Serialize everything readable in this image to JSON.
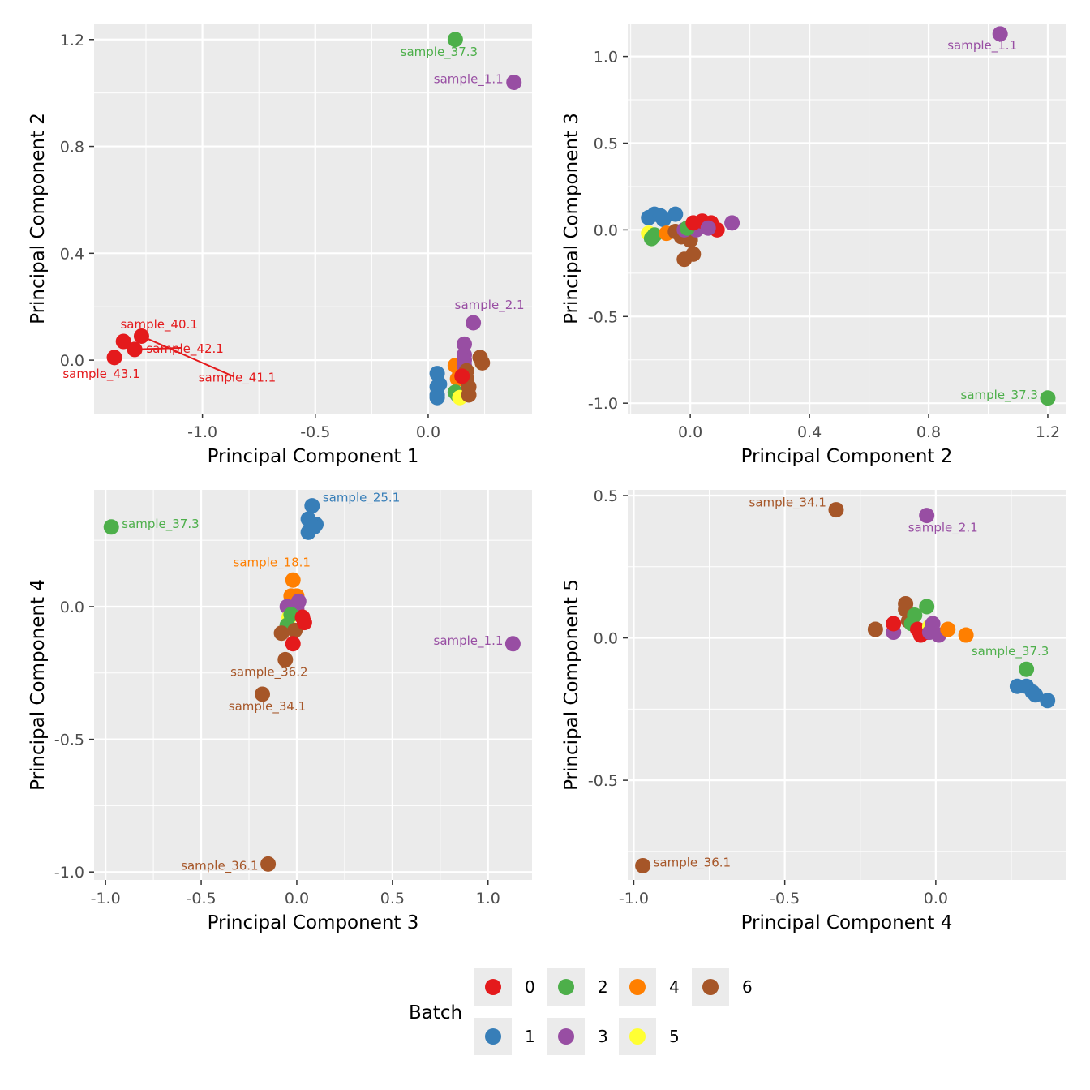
{
  "legend": {
    "title": "Batch",
    "items": [
      {
        "label": "0",
        "color": "#E41A1C"
      },
      {
        "label": "1",
        "color": "#377EB8"
      },
      {
        "label": "2",
        "color": "#4DAF4A"
      },
      {
        "label": "3",
        "color": "#984EA3"
      },
      {
        "label": "4",
        "color": "#FF7F00"
      },
      {
        "label": "5",
        "color": "#FFFF33"
      },
      {
        "label": "6",
        "color": "#A65628"
      }
    ]
  },
  "chart_data": [
    {
      "type": "scatter",
      "xlabel": "Principal Component 1",
      "ylabel": "Principal Component 2",
      "xlim": [
        -1.48,
        0.46
      ],
      "ylim": [
        -0.2,
        1.26
      ],
      "x_ticks": [
        -1.0,
        -0.5,
        0.0
      ],
      "x_tick_labels": [
        "-1.0",
        "-0.5",
        "0.0"
      ],
      "y_ticks": [
        0.0,
        0.4,
        0.8,
        1.2
      ],
      "y_tick_labels": [
        "0.0",
        "0.4",
        "0.8",
        "1.2"
      ],
      "points": [
        {
          "x": -1.39,
          "y": 0.01,
          "batch": "0",
          "label": "sample_43.1"
        },
        {
          "x": -1.35,
          "y": 0.07,
          "batch": "0",
          "label": "sample_40.1"
        },
        {
          "x": -1.3,
          "y": 0.04,
          "batch": "0",
          "label": "sample_42.1"
        },
        {
          "x": -1.27,
          "y": 0.09,
          "batch": "0",
          "label": "sample_41.1"
        },
        {
          "x": 0.12,
          "y": 1.2,
          "batch": "2",
          "label": "sample_37.3"
        },
        {
          "x": 0.38,
          "y": 1.04,
          "batch": "3",
          "label": "sample_1.1"
        },
        {
          "x": 0.2,
          "y": 0.14,
          "batch": "3",
          "label": "sample_2.1"
        },
        {
          "x": 0.04,
          "y": -0.05,
          "batch": "1"
        },
        {
          "x": 0.04,
          "y": -0.1,
          "batch": "1"
        },
        {
          "x": 0.04,
          "y": -0.13,
          "batch": "1"
        },
        {
          "x": 0.04,
          "y": -0.14,
          "batch": "1"
        },
        {
          "x": 0.05,
          "y": -0.09,
          "batch": "1"
        },
        {
          "x": 0.12,
          "y": -0.02,
          "batch": "4"
        },
        {
          "x": 0.13,
          "y": -0.07,
          "batch": "4"
        },
        {
          "x": 0.14,
          "y": -0.05,
          "batch": "4"
        },
        {
          "x": 0.13,
          "y": -0.13,
          "batch": "2"
        },
        {
          "x": 0.12,
          "y": -0.12,
          "batch": "2"
        },
        {
          "x": 0.14,
          "y": -0.14,
          "batch": "5"
        },
        {
          "x": 0.16,
          "y": 0.06,
          "batch": "3"
        },
        {
          "x": 0.16,
          "y": 0.02,
          "batch": "3"
        },
        {
          "x": 0.16,
          "y": 0.0,
          "batch": "3"
        },
        {
          "x": 0.16,
          "y": -0.02,
          "batch": "3"
        },
        {
          "x": 0.17,
          "y": -0.04,
          "batch": "6"
        },
        {
          "x": 0.17,
          "y": -0.07,
          "batch": "6"
        },
        {
          "x": 0.18,
          "y": -0.1,
          "batch": "6"
        },
        {
          "x": 0.18,
          "y": -0.13,
          "batch": "6"
        },
        {
          "x": 0.23,
          "y": 0.01,
          "batch": "6"
        },
        {
          "x": 0.24,
          "y": -0.01,
          "batch": "6"
        },
        {
          "x": 0.15,
          "y": -0.06,
          "batch": "0"
        }
      ]
    },
    {
      "type": "scatter",
      "xlabel": "Principal Component 2",
      "ylabel": "Principal Component 3",
      "xlim": [
        -0.21,
        1.26
      ],
      "ylim": [
        -1.06,
        1.19
      ],
      "x_ticks": [
        0.0,
        0.4,
        0.8,
        1.2
      ],
      "x_tick_labels": [
        "0.0",
        "0.4",
        "0.8",
        "1.2"
      ],
      "y_ticks": [
        -1.0,
        -0.5,
        0.0,
        0.5,
        1.0
      ],
      "y_tick_labels": [
        "-1.0",
        "-0.5",
        "0.0",
        "0.5",
        "1.0"
      ],
      "points": [
        {
          "x": 1.04,
          "y": 1.13,
          "batch": "3",
          "label": "sample_1.1"
        },
        {
          "x": 1.2,
          "y": -0.97,
          "batch": "2",
          "label": "sample_37.3"
        },
        {
          "x": -0.14,
          "y": 0.07,
          "batch": "1"
        },
        {
          "x": -0.12,
          "y": 0.09,
          "batch": "1"
        },
        {
          "x": -0.1,
          "y": 0.08,
          "batch": "1"
        },
        {
          "x": -0.05,
          "y": 0.09,
          "batch": "1"
        },
        {
          "x": -0.09,
          "y": 0.06,
          "batch": "1"
        },
        {
          "x": -0.14,
          "y": -0.02,
          "batch": "5"
        },
        {
          "x": -0.13,
          "y": -0.05,
          "batch": "2"
        },
        {
          "x": -0.12,
          "y": -0.03,
          "batch": "2"
        },
        {
          "x": -0.08,
          "y": -0.02,
          "batch": "4"
        },
        {
          "x": -0.05,
          "y": -0.01,
          "batch": "6"
        },
        {
          "x": -0.03,
          "y": -0.04,
          "batch": "6"
        },
        {
          "x": -0.02,
          "y": -0.17,
          "batch": "6"
        },
        {
          "x": 0.01,
          "y": -0.14,
          "batch": "6"
        },
        {
          "x": 0.0,
          "y": -0.06,
          "batch": "6"
        },
        {
          "x": -0.02,
          "y": 0.0,
          "batch": "3"
        },
        {
          "x": 0.02,
          "y": 0.0,
          "batch": "3"
        },
        {
          "x": -0.01,
          "y": 0.01,
          "batch": "2"
        },
        {
          "x": 0.01,
          "y": 0.04,
          "batch": "0"
        },
        {
          "x": 0.04,
          "y": 0.05,
          "batch": "0"
        },
        {
          "x": 0.07,
          "y": 0.04,
          "batch": "0"
        },
        {
          "x": 0.09,
          "y": 0.0,
          "batch": "0"
        },
        {
          "x": 0.06,
          "y": 0.01,
          "batch": "3"
        },
        {
          "x": 0.14,
          "y": 0.04,
          "batch": "3"
        }
      ]
    },
    {
      "type": "scatter",
      "xlabel": "Principal Component 3",
      "ylabel": "Principal Component 4",
      "xlim": [
        -1.06,
        1.23
      ],
      "ylim": [
        -1.03,
        0.44
      ],
      "x_ticks": [
        -1.0,
        -0.5,
        0.0,
        0.5,
        1.0
      ],
      "x_tick_labels": [
        "-1.0",
        "-0.5",
        "0.0",
        "0.5",
        "1.0"
      ],
      "y_ticks": [
        -1.0,
        -0.5,
        0.0
      ],
      "y_tick_labels": [
        "-1.0",
        "-0.5",
        "0.0"
      ],
      "points": [
        {
          "x": -0.97,
          "y": 0.3,
          "batch": "2",
          "label": "sample_37.3"
        },
        {
          "x": 0.08,
          "y": 0.38,
          "batch": "1",
          "label": "sample_25.1"
        },
        {
          "x": 1.13,
          "y": -0.14,
          "batch": "3",
          "label": "sample_1.1"
        },
        {
          "x": -0.02,
          "y": 0.1,
          "batch": "4",
          "label": "sample_18.1"
        },
        {
          "x": -0.06,
          "y": -0.2,
          "batch": "6",
          "label": "sample_36.2"
        },
        {
          "x": -0.18,
          "y": -0.33,
          "batch": "6",
          "label": "sample_34.1"
        },
        {
          "x": -0.15,
          "y": -0.97,
          "batch": "6",
          "label": "sample_36.1"
        },
        {
          "x": 0.06,
          "y": 0.33,
          "batch": "1"
        },
        {
          "x": 0.1,
          "y": 0.31,
          "batch": "1"
        },
        {
          "x": 0.06,
          "y": 0.28,
          "batch": "1"
        },
        {
          "x": 0.09,
          "y": 0.3,
          "batch": "1"
        },
        {
          "x": -0.03,
          "y": 0.04,
          "batch": "4"
        },
        {
          "x": 0.0,
          "y": 0.04,
          "batch": "4"
        },
        {
          "x": -0.05,
          "y": 0.0,
          "batch": "3"
        },
        {
          "x": 0.01,
          "y": 0.02,
          "batch": "3"
        },
        {
          "x": 0.0,
          "y": -0.01,
          "batch": "3"
        },
        {
          "x": -0.04,
          "y": -0.04,
          "batch": "5"
        },
        {
          "x": -0.05,
          "y": -0.07,
          "batch": "2"
        },
        {
          "x": -0.03,
          "y": -0.03,
          "batch": "2"
        },
        {
          "x": -0.08,
          "y": -0.1,
          "batch": "6"
        },
        {
          "x": -0.01,
          "y": -0.09,
          "batch": "6"
        },
        {
          "x": 0.03,
          "y": -0.04,
          "batch": "0"
        },
        {
          "x": 0.04,
          "y": -0.06,
          "batch": "0"
        },
        {
          "x": -0.02,
          "y": -0.14,
          "batch": "0"
        }
      ]
    },
    {
      "type": "scatter",
      "xlabel": "Principal Component 4",
      "ylabel": "Principal Component 5",
      "xlim": [
        -1.02,
        0.43
      ],
      "ylim": [
        -0.85,
        0.52
      ],
      "x_ticks": [
        -1.0,
        -0.5,
        0.0
      ],
      "x_tick_labels": [
        "-1.0",
        "-0.5",
        "0.0"
      ],
      "y_ticks": [
        -0.5,
        0.0,
        0.5
      ],
      "y_tick_labels": [
        "-0.5",
        "0.0",
        "0.5"
      ],
      "points": [
        {
          "x": -0.33,
          "y": 0.45,
          "batch": "6",
          "label": "sample_34.1"
        },
        {
          "x": -0.03,
          "y": 0.43,
          "batch": "3",
          "label": "sample_2.1"
        },
        {
          "x": 0.3,
          "y": -0.11,
          "batch": "2",
          "label": "sample_37.3"
        },
        {
          "x": -0.97,
          "y": -0.8,
          "batch": "6",
          "label": "sample_36.1"
        },
        {
          "x": -0.2,
          "y": 0.03,
          "batch": "6"
        },
        {
          "x": -0.14,
          "y": 0.02,
          "batch": "3"
        },
        {
          "x": -0.14,
          "y": 0.05,
          "batch": "0"
        },
        {
          "x": -0.1,
          "y": 0.12,
          "batch": "6"
        },
        {
          "x": -0.1,
          "y": 0.1,
          "batch": "6"
        },
        {
          "x": -0.09,
          "y": 0.06,
          "batch": "6"
        },
        {
          "x": -0.08,
          "y": 0.05,
          "batch": "2"
        },
        {
          "x": -0.07,
          "y": 0.08,
          "batch": "2"
        },
        {
          "x": -0.03,
          "y": 0.11,
          "batch": "2"
        },
        {
          "x": -0.06,
          "y": 0.03,
          "batch": "0"
        },
        {
          "x": -0.05,
          "y": 0.01,
          "batch": "0"
        },
        {
          "x": -0.03,
          "y": 0.02,
          "batch": "0"
        },
        {
          "x": -0.02,
          "y": 0.04,
          "batch": "5"
        },
        {
          "x": -0.01,
          "y": 0.05,
          "batch": "3"
        },
        {
          "x": -0.02,
          "y": 0.02,
          "batch": "3"
        },
        {
          "x": 0.01,
          "y": 0.01,
          "batch": "3"
        },
        {
          "x": 0.04,
          "y": 0.03,
          "batch": "4"
        },
        {
          "x": 0.1,
          "y": 0.01,
          "batch": "4"
        },
        {
          "x": 0.27,
          "y": -0.17,
          "batch": "1"
        },
        {
          "x": 0.3,
          "y": -0.17,
          "batch": "1"
        },
        {
          "x": 0.32,
          "y": -0.19,
          "batch": "1"
        },
        {
          "x": 0.33,
          "y": -0.2,
          "batch": "1"
        },
        {
          "x": 0.37,
          "y": -0.22,
          "batch": "1"
        }
      ]
    }
  ]
}
